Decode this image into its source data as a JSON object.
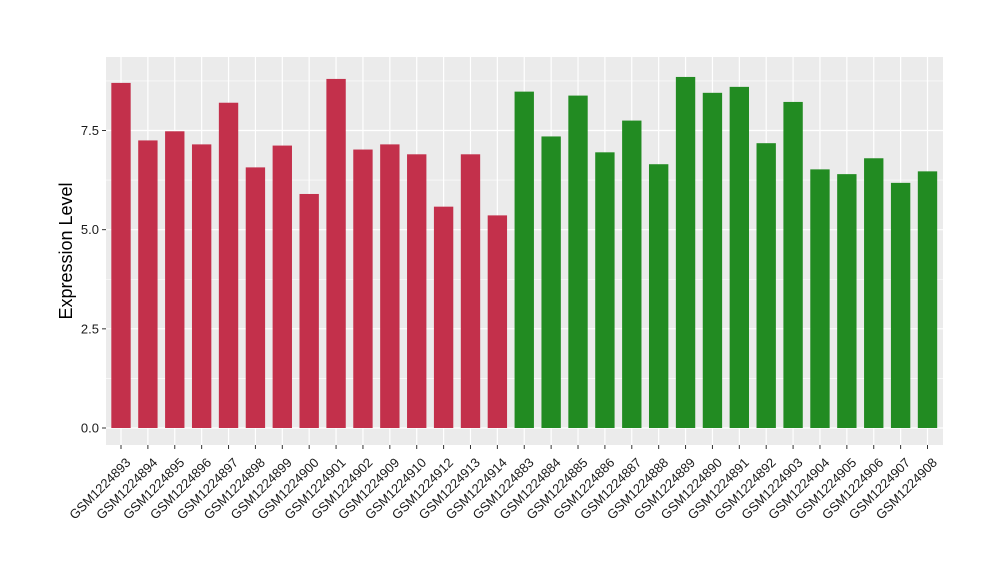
{
  "chart_data": {
    "type": "bar",
    "title": "",
    "xlabel": "",
    "ylabel": "Expression Level",
    "ylim": [
      0,
      9.2
    ],
    "yticks": [
      0.0,
      2.5,
      5.0,
      7.5
    ],
    "ytick_labels": [
      "0.0",
      "2.5",
      "5.0",
      "7.5"
    ],
    "grid": true,
    "legend": "none",
    "categories": [
      "GSM1224893",
      "GSM1224894",
      "GSM1224895",
      "GSM1224896",
      "GSM1224897",
      "GSM1224898",
      "GSM1224899",
      "GSM1224900",
      "GSM1224901",
      "GSM1224902",
      "GSM1224909",
      "GSM1224910",
      "GSM1224912",
      "GSM1224913",
      "GSM1224914",
      "GSM1224883",
      "GSM1224884",
      "GSM1224885",
      "GSM1224886",
      "GSM1224887",
      "GSM1224888",
      "GSM1224889",
      "GSM1224890",
      "GSM1224891",
      "GSM1224892",
      "GSM1224903",
      "GSM1224904",
      "GSM1224905",
      "GSM1224906",
      "GSM1224907",
      "GSM1224908"
    ],
    "values": [
      8.7,
      7.25,
      7.48,
      7.15,
      8.2,
      6.57,
      7.12,
      5.9,
      8.8,
      7.02,
      7.15,
      6.9,
      5.58,
      6.9,
      5.36,
      8.48,
      7.35,
      8.38,
      6.95,
      7.75,
      6.65,
      8.85,
      8.45,
      8.6,
      7.18,
      8.22,
      6.52,
      6.4,
      6.8,
      6.18,
      6.47
    ],
    "bar_colors": [
      "#C3304B",
      "#C3304B",
      "#C3304B",
      "#C3304B",
      "#C3304B",
      "#C3304B",
      "#C3304B",
      "#C3304B",
      "#C3304B",
      "#C3304B",
      "#C3304B",
      "#C3304B",
      "#C3304B",
      "#C3304B",
      "#C3304B",
      "#228B22",
      "#228B22",
      "#228B22",
      "#228B22",
      "#228B22",
      "#228B22",
      "#228B22",
      "#228B22",
      "#228B22",
      "#228B22",
      "#228B22",
      "#228B22",
      "#228B22",
      "#228B22",
      "#228B22",
      "#228B22"
    ]
  },
  "colors": {
    "panel_background": "#EBEBEB",
    "grid_major": "#FFFFFF",
    "group_a": "#C3304B",
    "group_b": "#228B22"
  }
}
